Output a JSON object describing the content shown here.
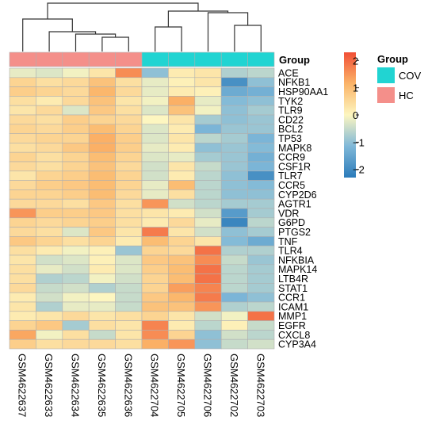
{
  "chart_data": {
    "type": "heatmap",
    "columns": [
      "GSM4622637",
      "GSM4622633",
      "GSM4622634",
      "GSM4622635",
      "GSM4622636",
      "GSM4622704",
      "GSM4622705",
      "GSM4622706",
      "GSM4622702",
      "GSM4622703"
    ],
    "column_groups": [
      "HC",
      "HC",
      "HC",
      "HC",
      "HC",
      "COV",
      "COV",
      "COV",
      "COV",
      "COV"
    ],
    "rows": [
      "ACE",
      "NFKB1",
      "HSP90AA1",
      "TYK2",
      "TLR9",
      "CD22",
      "BCL2",
      "TP53",
      "MAPK8",
      "CCR9",
      "CSF1R",
      "TLR7",
      "CCR5",
      "CYP2D6",
      "AGTR1",
      "VDR",
      "G6PD",
      "PTGS2",
      "TNF",
      "TLR4",
      "NFKBIA",
      "MAPK14",
      "LTB4R",
      "STAT1",
      "CCR1",
      "ICAM1",
      "MMP1",
      "EGFR",
      "CXCL8",
      "CYP3A4"
    ],
    "values": [
      [
        -0.2,
        -0.3,
        -0.1,
        0.3,
        1.6,
        -1.0,
        0.2,
        0.3,
        -0.7,
        -0.6
      ],
      [
        0.6,
        0.4,
        0.5,
        0.9,
        0.4,
        -0.2,
        0.1,
        0.3,
        -1.9,
        -1.0
      ],
      [
        0.7,
        0.6,
        0.5,
        1.1,
        0.5,
        -0.2,
        0.2,
        0.1,
        -1.4,
        -1.3
      ],
      [
        0.4,
        0.2,
        0.5,
        0.9,
        0.3,
        -0.1,
        1.2,
        -0.2,
        -1.1,
        -1.0
      ],
      [
        0.3,
        0.5,
        -0.3,
        0.8,
        0.4,
        -0.3,
        0.9,
        -0.1,
        -1.0,
        -0.8
      ],
      [
        0.5,
        0.4,
        0.7,
        0.6,
        0.5,
        0.0,
        0.3,
        -0.8,
        -1.0,
        -0.9
      ],
      [
        0.6,
        0.5,
        0.7,
        1.0,
        0.6,
        -0.3,
        0.2,
        -1.2,
        -0.9,
        -0.9
      ],
      [
        0.5,
        0.6,
        0.6,
        1.2,
        0.7,
        -0.3,
        0.3,
        -0.6,
        -0.8,
        -1.2
      ],
      [
        0.4,
        0.5,
        0.8,
        1.2,
        0.7,
        -0.2,
        0.2,
        -1.0,
        -0.9,
        -1.1
      ],
      [
        0.6,
        0.4,
        0.6,
        1.0,
        0.6,
        -0.3,
        -0.2,
        -0.8,
        -0.9,
        -1.3
      ],
      [
        0.5,
        0.4,
        0.6,
        0.9,
        0.5,
        -0.4,
        0.3,
        -0.5,
        -0.9,
        -1.2
      ],
      [
        0.3,
        0.6,
        0.7,
        1.0,
        0.6,
        -0.4,
        0.2,
        -0.6,
        -1.0,
        -1.9
      ],
      [
        0.5,
        0.7,
        0.8,
        1.0,
        0.6,
        -0.2,
        1.0,
        -0.6,
        -1.0,
        -1.1
      ],
      [
        0.6,
        0.6,
        0.7,
        1.0,
        0.5,
        -0.2,
        0.4,
        -0.6,
        -1.0,
        -1.0
      ],
      [
        0.5,
        0.5,
        0.4,
        0.8,
        0.4,
        1.5,
        -0.4,
        -0.6,
        -0.8,
        -0.8
      ],
      [
        1.5,
        0.7,
        0.7,
        0.8,
        0.4,
        0.3,
        0.2,
        -0.4,
        -1.7,
        -0.8
      ],
      [
        0.6,
        0.5,
        0.6,
        0.7,
        0.4,
        0.2,
        0.5,
        -0.2,
        -2.1,
        -0.6
      ],
      [
        0.5,
        0.4,
        -0.3,
        0.8,
        0.3,
        1.8,
        0.3,
        -0.4,
        -1.0,
        -0.8
      ],
      [
        0.8,
        0.6,
        0.4,
        0.6,
        0.2,
        1.0,
        0.6,
        0.3,
        -1.1,
        -1.4
      ],
      [
        0.4,
        0.2,
        -0.1,
        0.1,
        -0.9,
        0.6,
        0.5,
        1.9,
        -0.7,
        -0.7
      ],
      [
        0.3,
        -0.4,
        -0.3,
        0.1,
        -0.3,
        0.8,
        0.9,
        1.6,
        -0.5,
        -0.9
      ],
      [
        0.4,
        -0.2,
        -0.4,
        0.2,
        -0.3,
        0.7,
        1.0,
        1.9,
        -0.6,
        -0.8
      ],
      [
        0.4,
        -0.7,
        -0.6,
        -0.1,
        -0.4,
        0.6,
        1.0,
        1.9,
        -0.6,
        -0.8
      ],
      [
        0.5,
        -0.5,
        -0.4,
        -0.7,
        -0.5,
        0.6,
        1.4,
        1.7,
        -0.6,
        -0.8
      ],
      [
        0.2,
        -0.4,
        -0.1,
        0.0,
        -0.5,
        0.8,
        1.1,
        1.8,
        -1.2,
        -1.0
      ],
      [
        0.3,
        -0.7,
        -0.2,
        -0.2,
        -0.5,
        0.9,
        0.9,
        1.5,
        -0.7,
        -0.6
      ],
      [
        0.2,
        0.3,
        0.5,
        0.3,
        0.4,
        0.6,
        0.3,
        -0.4,
        -0.1,
        1.9
      ],
      [
        0.6,
        0.8,
        -0.8,
        0.4,
        0.3,
        1.7,
        0.2,
        -0.6,
        0.1,
        -0.5
      ],
      [
        1.3,
        -0.1,
        0.4,
        -0.5,
        0.3,
        1.6,
        0.6,
        -1.0,
        -0.4,
        -0.6
      ],
      [
        0.7,
        0.4,
        0.5,
        0.5,
        0.4,
        1.2,
        1.5,
        -1.0,
        -0.5,
        -0.4
      ]
    ],
    "color_scale": {
      "min": -2.3,
      "max": 2.3,
      "colors": [
        "#2b7bba",
        "#7fb8d8",
        "#fdf6c0",
        "#fbb468",
        "#f14f36"
      ]
    },
    "colorbar_ticks": [
      2,
      1,
      0,
      -1,
      -2
    ],
    "colorbar_tick_labels": [
      "2",
      "1",
      "0",
      "−1",
      "−2"
    ],
    "group_annotation": {
      "label": "Group",
      "legend_title": "Group"
    },
    "group_legend": [
      {
        "name": "COV",
        "color": "#21d4d2"
      },
      {
        "name": "HC",
        "color": "#f48f8a"
      }
    ],
    "dendrogram": "column clustering tree"
  }
}
